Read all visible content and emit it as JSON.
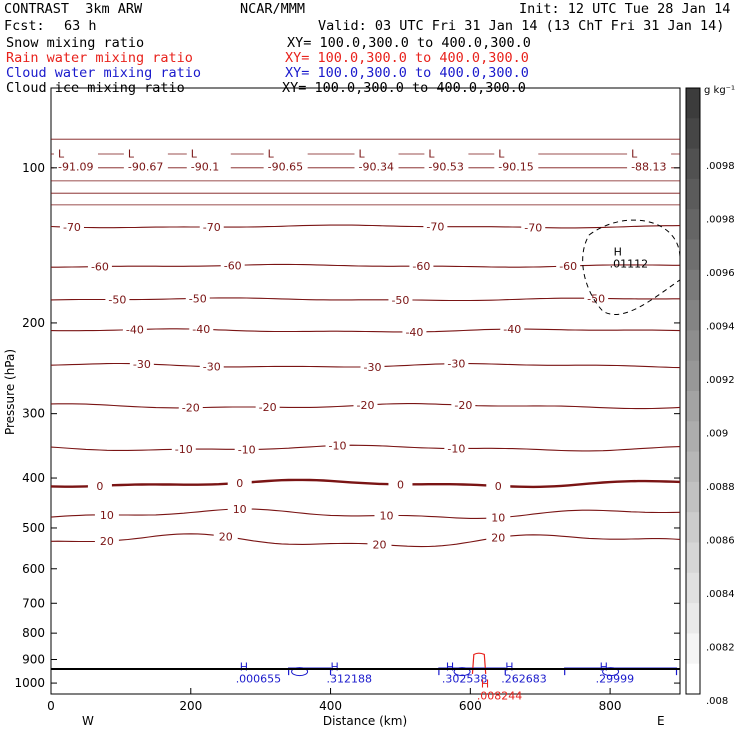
{
  "header": {
    "model_line": "CONTRAST  3km ARW",
    "org": "NCAR/MMM",
    "init": "Init: 12 UTC Tue 28 Jan 14",
    "fcst_label": "Fcst:",
    "fcst_value": "63 h",
    "valid": "Valid: 03 UTC Fri 31 Jan 14 (13 ChT Fri 31 Jan 14)"
  },
  "fields": [
    {
      "name": "Snow mixing ratio",
      "xy": "XY= 100.0,300.0 to 400.0,300.0",
      "color": "#000000"
    },
    {
      "name": "Rain water mixing ratio",
      "xy": "XY= 100.0,300.0 to 400.0,300.0",
      "color": "#e8221c"
    },
    {
      "name": "Cloud water mixing ratio",
      "xy": "XY= 100.0,300.0 to 400.0,300.0",
      "color": "#1a1acc"
    },
    {
      "name": "Cloud ice mixing ratio",
      "xy": "XY= 100.0,300.0 to 400.0,300.0",
      "color": "#000000"
    }
  ],
  "colors": {
    "temperature": "#7a1414",
    "rain": "#e8221c",
    "cloud_water": "#1a1acc",
    "cloud_ice": "#000000"
  },
  "chart_data": {
    "type": "line",
    "xlabel": "Distance (km)",
    "ylabel": "Pressure (hPa)",
    "xlim": [
      0,
      900
    ],
    "ylim": [
      1050,
      70
    ],
    "x_ticks": [
      0,
      200,
      400,
      600,
      800
    ],
    "y_ticks": [
      100,
      200,
      300,
      400,
      500,
      600,
      700,
      800,
      900,
      1000
    ],
    "y_scale": "log",
    "direction_left": "W",
    "direction_right": "E",
    "colorbar": {
      "unit": "g kg⁻¹",
      "tick_labels": [
        ".0098",
        ".0098",
        ".0096",
        ".0094",
        ".0092",
        ".009",
        ".0088",
        ".0086",
        ".0084",
        ".0082",
        ".008"
      ]
    },
    "isotherms": [
      {
        "label": "-70",
        "p": 130,
        "wave": 4,
        "labels_x": [
          30,
          230,
          550,
          690
        ]
      },
      {
        "label": "-60",
        "p": 155,
        "wave": 4,
        "labels_x": [
          70,
          260,
          530,
          740
        ]
      },
      {
        "label": "-50",
        "p": 180,
        "wave": 4,
        "labels_x": [
          95,
          210,
          500,
          780
        ]
      },
      {
        "label": "-40",
        "p": 207,
        "wave": 5,
        "labels_x": [
          120,
          215,
          520,
          660
        ]
      },
      {
        "label": "-30",
        "p": 242,
        "wave": 6,
        "labels_x": [
          130,
          230,
          460,
          580
        ]
      },
      {
        "label": "-20",
        "p": 290,
        "wave": 7,
        "labels_x": [
          200,
          310,
          450,
          590
        ]
      },
      {
        "label": "-10",
        "p": 350,
        "wave": 8,
        "labels_x": [
          190,
          280,
          410,
          580
        ]
      },
      {
        "label": "0",
        "p": 410,
        "wave": 10,
        "labels_x": [
          70,
          270,
          500,
          640
        ]
      },
      {
        "label": "10",
        "p": 470,
        "wave": 14,
        "labels_x": [
          80,
          270,
          480,
          640
        ]
      },
      {
        "label": "20",
        "p": 530,
        "wave": 20,
        "labels_x": [
          80,
          250,
          470,
          640
        ]
      }
    ],
    "top_level_values": [
      "-91.09",
      "-90.67",
      "-90.1",
      "-90.65",
      "-90.34",
      "-90.53",
      "-90.15",
      "-88.13"
    ],
    "top_level_x": [
      10,
      110,
      200,
      310,
      440,
      540,
      640,
      830
    ],
    "extrema": [
      {
        "label": "H",
        "value": ".01112",
        "x": 805,
        "p": 148,
        "color": "#000000"
      },
      {
        "label": "H",
        "value": ".000655",
        "x": 270,
        "p": 946,
        "color": "#1a1acc"
      },
      {
        "label": "H",
        "value": ".312188",
        "x": 400,
        "p": 946,
        "color": "#1a1acc"
      },
      {
        "label": "H",
        "value": ".302538",
        "x": 565,
        "p": 946,
        "color": "#1a1acc"
      },
      {
        "label": "H",
        "value": ".262683",
        "x": 650,
        "p": 946,
        "color": "#1a1acc"
      },
      {
        "label": "H",
        "value": ".29999",
        "x": 785,
        "p": 946,
        "color": "#1a1acc"
      },
      {
        "label": "H",
        "value": ".008244",
        "x": 615,
        "p": 1020,
        "color": "#e8221c"
      }
    ]
  }
}
